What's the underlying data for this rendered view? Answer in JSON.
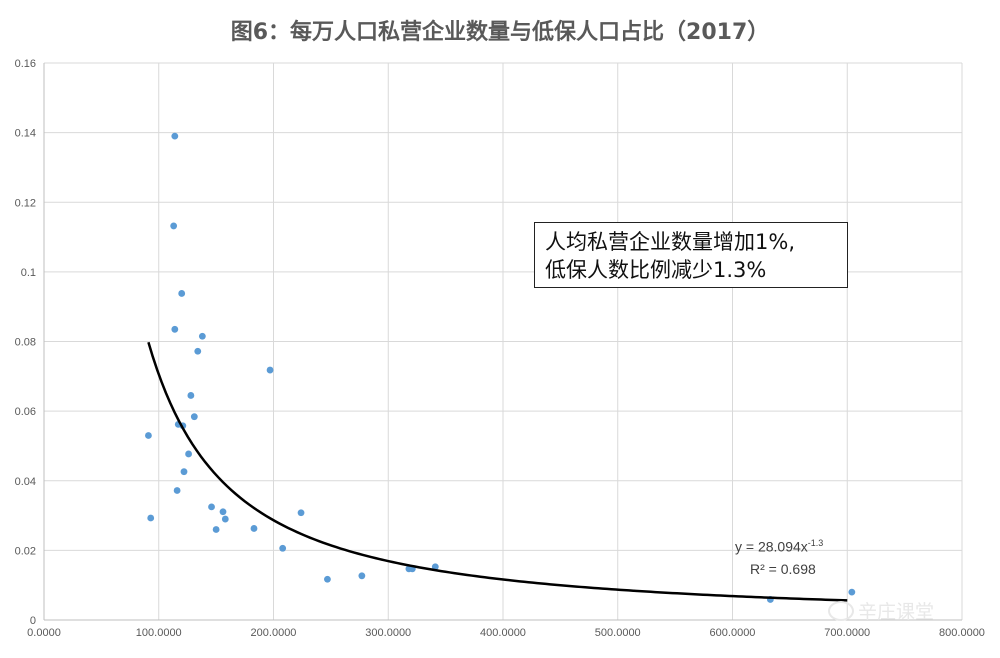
{
  "title": "图6：每万人口私营企业数量与低保人口占比（2017）",
  "annotation": {
    "line1": "人均私营企业数量增加1%,",
    "line2": "低保人数比例减少1.3%"
  },
  "trendline": {
    "equation_prefix": "y = 28.094x",
    "equation_exponent": "-1.3",
    "r_squared": "R² = 0.698",
    "color": "#000000"
  },
  "watermark": {
    "text": "辛庄课堂",
    "icon": "wechat-icon"
  },
  "chart_data": {
    "type": "scatter",
    "title": "图6：每万人口私营企业数量与低保人口占比（2017）",
    "xlabel": "",
    "ylabel": "",
    "xlim": [
      0,
      800
    ],
    "ylim": [
      0,
      0.16
    ],
    "x_ticks": [
      "0.0000",
      "100.0000",
      "200.0000",
      "300.0000",
      "400.0000",
      "500.0000",
      "600.0000",
      "700.0000",
      "800.0000"
    ],
    "y_ticks": [
      "0",
      "0.02",
      "0.04",
      "0.06",
      "0.08",
      "0.1",
      "0.12",
      "0.14",
      "0.16"
    ],
    "grid": true,
    "marker_color": "#5b9bd5",
    "points": [
      {
        "x": 114,
        "y": 0.139
      },
      {
        "x": 113,
        "y": 0.1132
      },
      {
        "x": 120,
        "y": 0.0938
      },
      {
        "x": 114,
        "y": 0.0835
      },
      {
        "x": 138,
        "y": 0.0815
      },
      {
        "x": 134,
        "y": 0.0772
      },
      {
        "x": 197,
        "y": 0.0718
      },
      {
        "x": 128,
        "y": 0.0645
      },
      {
        "x": 131,
        "y": 0.0584
      },
      {
        "x": 117,
        "y": 0.0562
      },
      {
        "x": 121,
        "y": 0.0558
      },
      {
        "x": 91,
        "y": 0.053
      },
      {
        "x": 126,
        "y": 0.0477
      },
      {
        "x": 122,
        "y": 0.0426
      },
      {
        "x": 116,
        "y": 0.0372
      },
      {
        "x": 146,
        "y": 0.0325
      },
      {
        "x": 156,
        "y": 0.0311
      },
      {
        "x": 224,
        "y": 0.0308
      },
      {
        "x": 93,
        "y": 0.0293
      },
      {
        "x": 158,
        "y": 0.029
      },
      {
        "x": 183,
        "y": 0.0263
      },
      {
        "x": 150,
        "y": 0.026
      },
      {
        "x": 208,
        "y": 0.0206
      },
      {
        "x": 341,
        "y": 0.0153
      },
      {
        "x": 318,
        "y": 0.0147
      },
      {
        "x": 321,
        "y": 0.0147
      },
      {
        "x": 277,
        "y": 0.0127
      },
      {
        "x": 247,
        "y": 0.0117
      },
      {
        "x": 704,
        "y": 0.008
      },
      {
        "x": 633,
        "y": 0.0059
      }
    ],
    "trendline": {
      "type": "power",
      "a": 28.094,
      "b": -1.3,
      "x_range": [
        91,
        700
      ]
    }
  }
}
